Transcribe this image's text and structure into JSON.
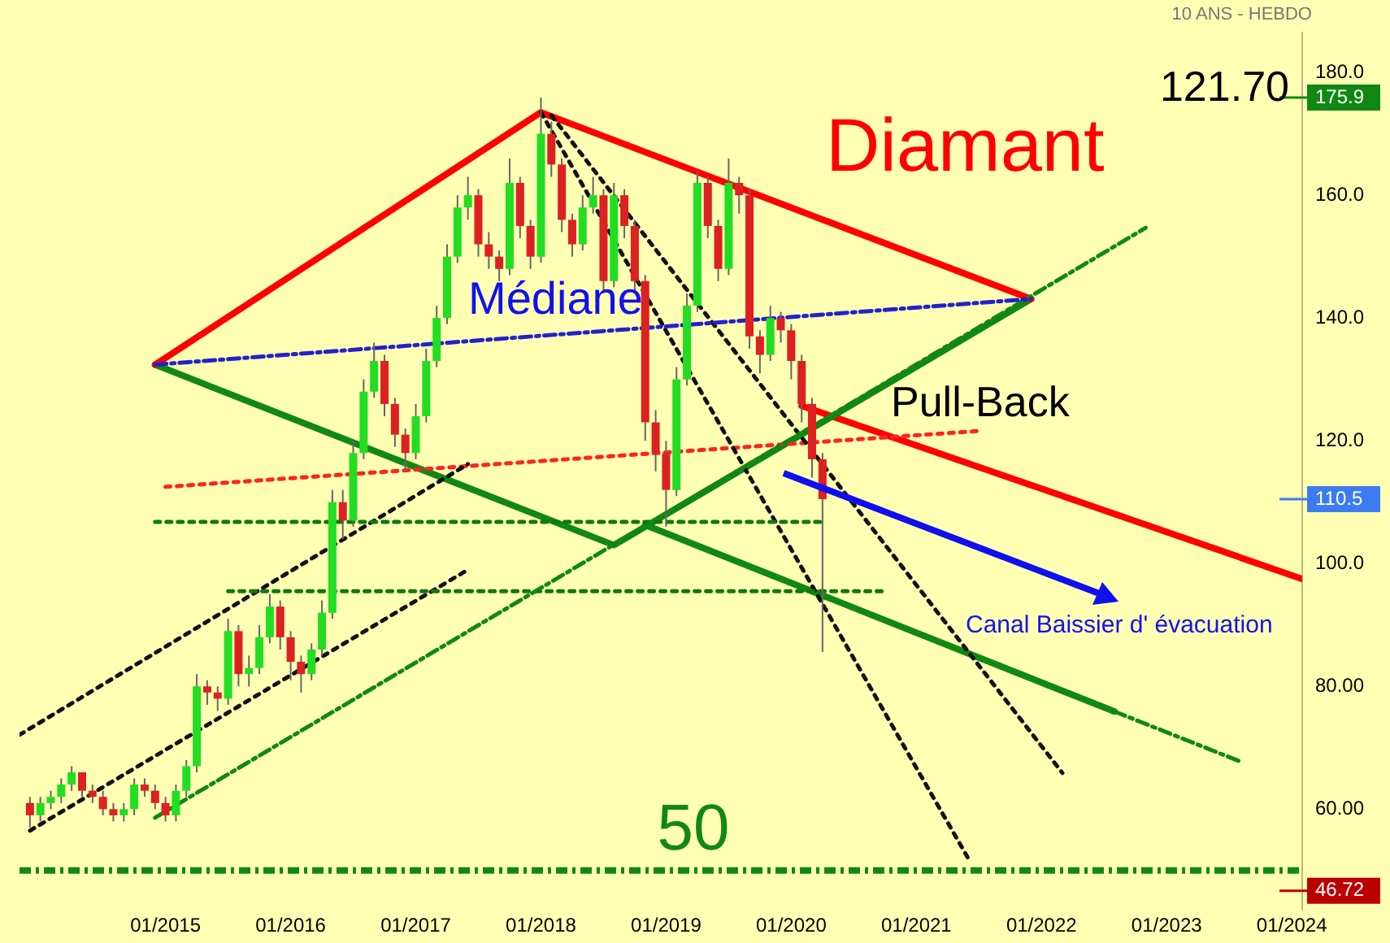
{
  "chart_data": {
    "type": "candlestick",
    "annotations": [
      "10 ANS - HEBDO",
      "121.70",
      "Diamant",
      "Médiane",
      "Pull-Back",
      "Canal Baissier d' évacuation"
    ],
    "x": [
      "2013-12",
      "2014-01",
      "2014-02",
      "2014-03",
      "2014-04",
      "2014-05",
      "2014-06",
      "2014-07",
      "2014-08",
      "2014-09",
      "2014-10",
      "2014-11",
      "2014-12",
      "2015-01",
      "2015-02",
      "2015-03",
      "2015-04",
      "2015-05",
      "2015-06",
      "2015-07",
      "2015-08",
      "2015-09",
      "2015-10",
      "2015-11",
      "2015-12",
      "2016-01",
      "2016-02",
      "2016-03",
      "2016-04",
      "2016-05",
      "2016-06",
      "2016-07",
      "2016-08",
      "2016-09",
      "2016-10",
      "2016-11",
      "2016-12",
      "2017-01",
      "2017-02",
      "2017-03",
      "2017-04",
      "2017-05",
      "2017-06",
      "2017-07",
      "2017-08",
      "2017-09",
      "2017-10",
      "2017-11",
      "2017-12",
      "2018-01",
      "2018-02",
      "2018-03",
      "2018-04",
      "2018-05",
      "2018-06",
      "2018-07",
      "2018-08",
      "2018-09",
      "2018-10",
      "2018-11",
      "2018-12",
      "2019-01",
      "2019-02",
      "2019-03",
      "2019-04",
      "2019-05",
      "2019-06",
      "2019-07",
      "2019-08",
      "2019-09",
      "2019-10",
      "2019-11",
      "2019-12",
      "2020-01",
      "2020-02",
      "2020-03",
      "2020-04"
    ],
    "ohlc": [
      [
        61,
        62,
        57,
        59
      ],
      [
        59,
        62,
        58,
        61
      ],
      [
        61,
        63,
        60,
        62
      ],
      [
        62,
        65,
        61,
        64
      ],
      [
        64,
        67,
        63,
        66
      ],
      [
        66,
        66,
        62,
        63
      ],
      [
        63,
        64,
        61,
        62
      ],
      [
        62,
        63,
        59,
        60
      ],
      [
        60,
        61,
        58,
        59
      ],
      [
        59,
        61,
        58,
        60
      ],
      [
        60,
        65,
        59,
        64
      ],
      [
        64,
        65,
        62,
        63
      ],
      [
        63,
        64,
        60,
        61
      ],
      [
        61,
        62,
        58,
        59
      ],
      [
        59,
        64,
        58,
        63
      ],
      [
        63,
        68,
        62,
        67
      ],
      [
        67,
        82,
        66,
        80
      ],
      [
        80,
        81,
        77,
        79
      ],
      [
        79,
        80,
        76,
        78
      ],
      [
        78,
        91,
        77,
        89
      ],
      [
        89,
        90,
        80,
        82
      ],
      [
        82,
        85,
        80,
        83
      ],
      [
        83,
        90,
        82,
        88
      ],
      [
        88,
        95,
        87,
        93
      ],
      [
        93,
        94,
        86,
        88
      ],
      [
        88,
        89,
        81,
        84
      ],
      [
        84,
        85,
        79,
        82
      ],
      [
        82,
        87,
        81,
        86
      ],
      [
        86,
        94,
        85,
        92
      ],
      [
        92,
        112,
        91,
        110
      ],
      [
        110,
        112,
        104,
        107
      ],
      [
        107,
        120,
        106,
        118
      ],
      [
        118,
        130,
        117,
        128
      ],
      [
        128,
        136,
        127,
        133
      ],
      [
        133,
        134,
        124,
        126
      ],
      [
        126,
        127,
        119,
        121
      ],
      [
        121,
        122,
        115,
        118
      ],
      [
        118,
        126,
        117,
        124
      ],
      [
        124,
        135,
        123,
        133
      ],
      [
        133,
        142,
        132,
        140
      ],
      [
        140,
        152,
        139,
        150
      ],
      [
        150,
        160,
        149,
        158
      ],
      [
        158,
        163,
        156,
        160
      ],
      [
        160,
        161,
        150,
        152
      ],
      [
        152,
        154,
        148,
        150
      ],
      [
        150,
        151,
        146,
        148
      ],
      [
        148,
        166,
        147,
        162
      ],
      [
        162,
        163,
        153,
        155
      ],
      [
        155,
        156,
        148,
        150
      ],
      [
        150,
        175.9,
        149,
        170
      ],
      [
        170,
        172,
        163,
        165
      ],
      [
        165,
        166,
        154,
        156
      ],
      [
        156,
        157,
        150,
        152
      ],
      [
        152,
        160,
        151,
        158
      ],
      [
        158,
        163,
        157,
        160
      ],
      [
        160,
        161,
        144,
        146
      ],
      [
        146,
        162,
        145,
        160
      ],
      [
        160,
        161,
        153,
        155
      ],
      [
        155,
        156,
        144,
        146
      ],
      [
        146,
        147,
        120,
        123
      ],
      [
        123,
        125,
        115,
        118
      ],
      [
        118,
        120,
        106,
        112
      ],
      [
        112,
        132,
        111,
        130
      ],
      [
        130,
        144,
        129,
        142
      ],
      [
        142,
        164,
        141,
        162
      ],
      [
        162,
        163,
        153,
        155
      ],
      [
        155,
        156,
        146,
        148
      ],
      [
        148,
        166,
        147,
        162
      ],
      [
        162,
        163,
        157,
        160
      ],
      [
        160,
        161,
        135,
        137
      ],
      [
        137,
        138,
        131,
        134
      ],
      [
        134,
        142,
        133,
        140
      ],
      [
        140,
        141,
        136,
        138
      ],
      [
        138,
        139,
        130,
        133
      ],
      [
        133,
        134,
        123,
        126
      ],
      [
        126,
        127,
        114,
        117
      ],
      [
        117,
        118,
        85.6,
        110.5
      ]
    ],
    "series": [
      {
        "type": "line",
        "color": "#ff0000",
        "x": [
          "2014-12",
          "2018-01",
          "2021-12"
        ],
        "values": [
          132.4,
          173.5,
          143.1
        ],
        "line_style": "solid"
      },
      {
        "type": "line",
        "color": "#118811",
        "x": [
          "2014-12",
          "2018-08",
          "2021-12"
        ],
        "values": [
          132.4,
          103,
          143.1
        ],
        "line_style": "solid"
      },
      {
        "type": "line",
        "color": "#2222cc",
        "x": [
          "2014-12",
          "2021-12"
        ],
        "values": [
          132.4,
          143.1
        ],
        "line_style": "dashed"
      },
      {
        "type": "line",
        "color": "#ff0000",
        "x": [
          "2020-02",
          "2024-02"
        ],
        "values": [
          125.7,
          97.5
        ],
        "line_style": "solid"
      },
      {
        "type": "line",
        "color": "#118811",
        "x": [
          "2018-11",
          "2022-08"
        ],
        "values": [
          106.3,
          75.9
        ],
        "line_style": "solid"
      },
      {
        "type": "line",
        "color": "#118811",
        "x": [
          "2022-08",
          "2023-08"
        ],
        "values": [
          75.9,
          67.8
        ],
        "line_style": "dashed"
      },
      {
        "type": "line",
        "color": "#118811",
        "x": [
          "2014-12",
          "2022-11"
        ],
        "values": [
          58.6,
          154.7
        ],
        "line_style": "dashed"
      },
      {
        "type": "line",
        "color": "#117711",
        "x": [
          "2014-12",
          "2020-04"
        ],
        "values": [
          106.8,
          106.8
        ],
        "line_style": "dotted"
      },
      {
        "type": "line",
        "color": "#117711",
        "x": [
          "2015-07",
          "2020-10"
        ],
        "values": [
          95.5,
          95.5
        ],
        "line_style": "dotted"
      },
      {
        "type": "line",
        "color": "#111111",
        "x": [
          "2013-12",
          "2017-06"
        ],
        "values": [
          56.5,
          99.0
        ],
        "line_style": "dotted"
      },
      {
        "type": "line",
        "color": "#111111",
        "x": [
          "2013-11",
          "2017-06"
        ],
        "values": [
          72.1,
          116.2
        ],
        "line_style": "dotted"
      },
      {
        "type": "line",
        "color": "#111111",
        "x": [
          "2018-01",
          "2021-06"
        ],
        "values": [
          173.5,
          51.9
        ],
        "line_style": "dotted"
      },
      {
        "type": "line",
        "color": "#111111",
        "x": [
          "2018-02",
          "2022-03"
        ],
        "values": [
          173.0,
          65.9
        ],
        "line_style": "dotted"
      },
      {
        "type": "line",
        "color": "#ff2222",
        "x": [
          "2015-01",
          "2021-07"
        ],
        "values": [
          112.5,
          121.6
        ],
        "line_style": "dotted"
      }
    ],
    "ref_lines": [
      {
        "axis": "y",
        "value": 50,
        "label": "50",
        "color": "#118811",
        "line_style": "dashed"
      },
      {
        "axis": "y",
        "value": 175.9,
        "label": "175.9",
        "color": "#118811"
      },
      {
        "axis": "y",
        "value": 110.5,
        "label": "110.5",
        "color": "#3d7bf0"
      },
      {
        "axis": "y",
        "value": 46.72,
        "label": "46.72",
        "color": "#bb0000"
      }
    ],
    "xlim": [
      "2013-11",
      "2024-02"
    ],
    "xticks": [
      {
        "value": "2015-01",
        "label": "01/2015"
      },
      {
        "value": "2016-01",
        "label": "01/2016"
      },
      {
        "value": "2017-01",
        "label": "01/2017"
      },
      {
        "value": "2018-01",
        "label": "01/2018"
      },
      {
        "value": "2019-01",
        "label": "01/2019"
      },
      {
        "value": "2020-01",
        "label": "01/2020"
      },
      {
        "value": "2021-01",
        "label": "01/2021"
      },
      {
        "value": "2022-01",
        "label": "01/2022"
      },
      {
        "value": "2023-01",
        "label": "01/2023"
      },
      {
        "value": "2024-01",
        "label": "01/2024"
      }
    ],
    "ylim": [
      43.6,
      186.5
    ],
    "yticks": [
      {
        "value": 60,
        "label": "60.00"
      },
      {
        "value": 80,
        "label": "80.00"
      },
      {
        "value": 100,
        "label": "100.0"
      },
      {
        "value": 120,
        "label": "120.0"
      },
      {
        "value": 140,
        "label": "140.0"
      },
      {
        "value": 160,
        "label": "160.0"
      },
      {
        "value": 180,
        "label": "180.0"
      }
    ],
    "grid": false,
    "legend": false
  }
}
